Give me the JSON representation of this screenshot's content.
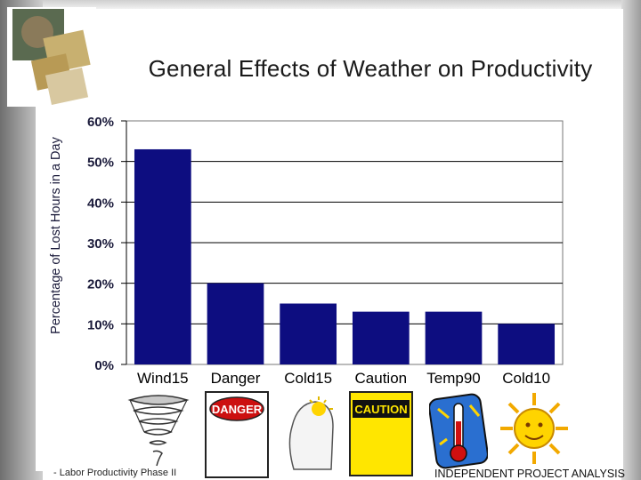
{
  "title": "General Effects of Weather on Productivity",
  "footer": {
    "left": "- Labor Productivity Phase II",
    "right": "INDEPENDENT PROJECT ANALYSIS"
  },
  "icons": [
    "tornado-icon",
    "danger-sign-icon",
    "cold-head-icon",
    "caution-sign-icon",
    "thermometer-icon",
    "sun-icon"
  ],
  "icon_text": {
    "danger": "DANGER",
    "caution": "CAUTION"
  },
  "colors": {
    "bar": "#0d0d80",
    "grid": "#000000"
  },
  "chart_data": {
    "type": "bar",
    "title": "General Effects of Weather on Productivity",
    "xlabel": "",
    "ylabel": "Percentage of Lost Hours in a Day",
    "categories": [
      "Wind15",
      "Danger",
      "Cold15",
      "Caution",
      "Temp90",
      "Cold10"
    ],
    "values": [
      53,
      20,
      15,
      13,
      13,
      10
    ],
    "ylim": [
      0,
      60
    ],
    "yticks": [
      "0%",
      "10%",
      "20%",
      "30%",
      "40%",
      "50%",
      "60%"
    ],
    "grid": true,
    "legend": "none"
  }
}
